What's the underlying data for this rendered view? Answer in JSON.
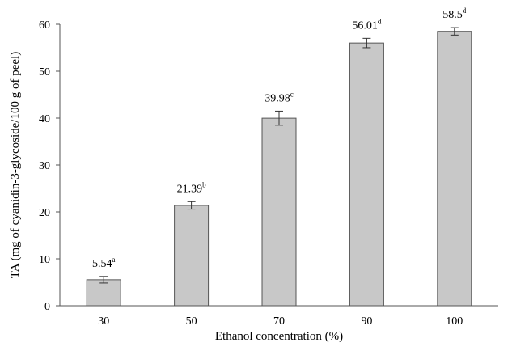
{
  "chart_data": {
    "type": "bar",
    "title": "",
    "xlabel": "Ethanol concentration (%)",
    "ylabel": "TA (mg of cyanidin-3-glycoside/100 g of peel)",
    "categories": [
      "30",
      "50",
      "70",
      "90",
      "100"
    ],
    "values": [
      5.54,
      21.39,
      39.98,
      56.01,
      58.5
    ],
    "errors": [
      0.7,
      0.8,
      1.5,
      1.0,
      0.8
    ],
    "value_labels": [
      "5.54",
      "21.39",
      "39.98",
      "56.01",
      "58.5"
    ],
    "significance_letters": [
      "a",
      "b",
      "c",
      "d",
      "d"
    ],
    "ylim": [
      0,
      60
    ],
    "yticks": [
      "0",
      "10",
      "20",
      "30",
      "40",
      "50",
      "60"
    ],
    "grid": false,
    "legend": "none",
    "bar_color": "#c8c8c8",
    "bar_edge_color": "#555555"
  }
}
